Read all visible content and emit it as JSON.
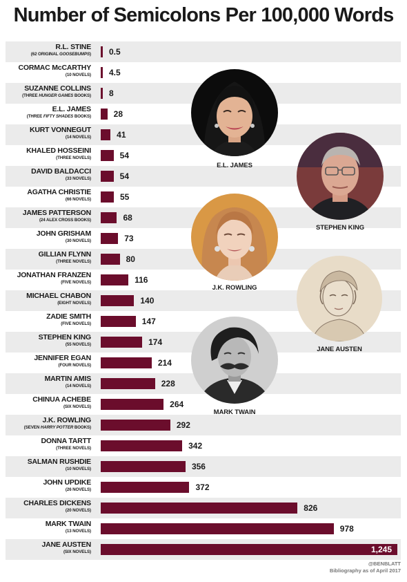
{
  "chart_data": {
    "type": "bar",
    "title": "Number of Semicolons Per 100,000 Words",
    "bars": [
      {
        "name": "R.L. STINE",
        "sub_pre": "(62 ORIGINAL ",
        "sub_italic": "GOOSEBUMPS",
        "sub_post": ")",
        "value": 0.5,
        "value_label": "0.5"
      },
      {
        "name": "CORMAC McCARTHY",
        "sub_pre": "(10 NOVELS)",
        "value": 4.5,
        "value_label": "4.5"
      },
      {
        "name": "SUZANNE COLLINS",
        "sub_pre": "(THREE ",
        "sub_italic": "HUNGER GAMES",
        "sub_post": " BOOKS)",
        "value": 8,
        "value_label": "8"
      },
      {
        "name": "E.L. JAMES",
        "sub_pre": "(THREE ",
        "sub_italic": "FIFTY SHADES",
        "sub_post": " BOOKS)",
        "value": 28,
        "value_label": "28"
      },
      {
        "name": "KURT VONNEGUT",
        "sub_pre": "(14 NOVELS)",
        "value": 41,
        "value_label": "41"
      },
      {
        "name": "KHALED HOSSEINI",
        "sub_pre": "(THREE NOVELS)",
        "value": 54,
        "value_label": "54"
      },
      {
        "name": "DAVID BALDACCI",
        "sub_pre": "(33 NOVELS)",
        "value": 54,
        "value_label": "54"
      },
      {
        "name": "AGATHA CHRISTIE",
        "sub_pre": "(66 NOVELS)",
        "value": 55,
        "value_label": "55"
      },
      {
        "name": "JAMES PATTERSON",
        "sub_pre": "(24 ALEX CROSS BOOKS)",
        "value": 68,
        "value_label": "68"
      },
      {
        "name": "JOHN GRISHAM",
        "sub_pre": "(30 NOVELS)",
        "value": 73,
        "value_label": "73"
      },
      {
        "name": "GILLIAN FLYNN",
        "sub_pre": "(THREE NOVELS)",
        "value": 80,
        "value_label": "80"
      },
      {
        "name": "JONATHAN FRANZEN",
        "sub_pre": "(FIVE NOVELS)",
        "value": 116,
        "value_label": "116"
      },
      {
        "name": "MICHAEL CHABON",
        "sub_pre": "(EIGHT NOVELS)",
        "value": 140,
        "value_label": "140"
      },
      {
        "name": "ZADIE SMITH",
        "sub_pre": "(FIVE NOVELS)",
        "value": 147,
        "value_label": "147"
      },
      {
        "name": "STEPHEN KING",
        "sub_pre": "(55 NOVELS)",
        "value": 174,
        "value_label": "174"
      },
      {
        "name": "JENNIFER EGAN",
        "sub_pre": "(FOUR NOVELS)",
        "value": 214,
        "value_label": "214"
      },
      {
        "name": "MARTIN AMIS",
        "sub_pre": "(14 NOVELS)",
        "value": 228,
        "value_label": "228"
      },
      {
        "name": "CHINUA ACHEBE",
        "sub_pre": "(SIX NOVELS)",
        "value": 264,
        "value_label": "264"
      },
      {
        "name": "J.K. ROWLING",
        "sub_pre": "(SEVEN ",
        "sub_italic": "HARRY POTTER",
        "sub_post": " BOOKS)",
        "value": 292,
        "value_label": "292"
      },
      {
        "name": "DONNA TARTT",
        "sub_pre": "(THREE NOVELS)",
        "value": 342,
        "value_label": "342"
      },
      {
        "name": "SALMAN RUSHDIE",
        "sub_pre": "(10 NOVELS)",
        "value": 356,
        "value_label": "356"
      },
      {
        "name": "JOHN UPDIKE",
        "sub_pre": "(26 NOVELS)",
        "value": 372,
        "value_label": "372"
      },
      {
        "name": "CHARLES DICKENS",
        "sub_pre": "(20 NOVELS)",
        "value": 826,
        "value_label": "826"
      },
      {
        "name": "MARK TWAIN",
        "sub_pre": "(13 NOVELS)",
        "value": 978,
        "value_label": "978"
      },
      {
        "name": "JANE AUSTEN",
        "sub_pre": "(SIX NOVELS)",
        "value": 1245,
        "value_label": "1,245"
      }
    ],
    "bar_color": "#6b0d2c",
    "row_stripe_color": "#ebebeb",
    "grid": false,
    "legend": "none"
  },
  "portraits": [
    {
      "key": "el-james",
      "label": "E.L. JAMES"
    },
    {
      "key": "stephen-king",
      "label": "STEPHEN KING"
    },
    {
      "key": "jk-rowling",
      "label": "J.K. ROWLING"
    },
    {
      "key": "jane-austen",
      "label": "JANE AUSTEN"
    },
    {
      "key": "mark-twain",
      "label": "MARK TWAIN"
    }
  ],
  "credits": {
    "handle": "@BENBLATT",
    "note": "Bibliography as of April 2017"
  }
}
